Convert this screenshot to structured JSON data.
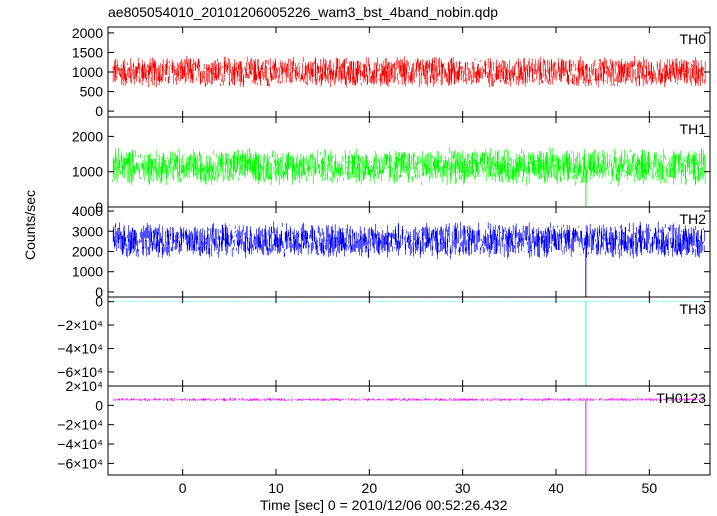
{
  "chart_data": {
    "type": "line",
    "title": "ae805054010_20101206005226_wam3_bst_4band_nobin.qdp",
    "xlabel": "Time [sec] 0 = 2010/12/06 00:52:26.432",
    "ylabel": "Counts/sec",
    "xlim": [
      -8,
      56.5
    ],
    "x_ticks": [
      0,
      10,
      20,
      30,
      40,
      50
    ],
    "x_tick_labels": [
      "0",
      "10",
      "20",
      "30",
      "40",
      "50"
    ],
    "grid": false,
    "panels": [
      {
        "name": "TH0",
        "color": "#ff0000",
        "ylim": [
          -150,
          2150
        ],
        "y_ticks": [
          0,
          500,
          1000,
          1500,
          2000
        ],
        "y_tick_labels": [
          "0",
          "500",
          "1000",
          "1500",
          "2000"
        ],
        "x_range": [
          -7.5,
          56
        ],
        "mean": 1000,
        "noise_amplitude": 430,
        "spike": null
      },
      {
        "name": "TH1",
        "color": "#00ff00",
        "ylim": [
          0,
          2550
        ],
        "y_ticks": [
          0,
          1000,
          2000
        ],
        "y_tick_labels": [
          "0",
          "1000",
          "2000"
        ],
        "x_range": [
          -7.5,
          56
        ],
        "mean": 1150,
        "noise_amplitude": 560,
        "spike": {
          "x": 43.2,
          "y": 0
        }
      },
      {
        "name": "TH2",
        "color": "#0000ff",
        "ylim": [
          -250,
          4200
        ],
        "y_ticks": [
          0,
          1000,
          2000,
          3000,
          4000
        ],
        "y_tick_labels": [
          "0",
          "1000",
          "2000",
          "3000",
          "4000"
        ],
        "x_range": [
          -7.5,
          56
        ],
        "mean": 2550,
        "noise_amplitude": 950,
        "spike": {
          "x": 43.2,
          "y": -250
        }
      },
      {
        "name": "TH3",
        "color": "#00ffff",
        "ylim": [
          -72000,
          4000
        ],
        "y_ticks": [
          0,
          -20000,
          -40000,
          -60000
        ],
        "y_tick_labels": [
          "0",
          "−2×10⁴",
          "−4×10⁴",
          "−6×10⁴"
        ],
        "x_range": [
          -7.5,
          56
        ],
        "mean": 0,
        "noise_amplitude": 400,
        "spike": {
          "x": 43.2,
          "y": -72000
        }
      },
      {
        "name": "TH0123",
        "color": "#ff00ff",
        "ylim": [
          -72000,
          20000
        ],
        "y_ticks": [
          20000,
          0,
          -20000,
          -40000,
          -60000
        ],
        "y_tick_labels": [
          "2×10⁴",
          "0",
          "−2×10⁴",
          "−4×10⁴",
          "−6×10⁴"
        ],
        "x_range": [
          -7.5,
          56
        ],
        "mean": 6000,
        "noise_amplitude": 1800,
        "spike": {
          "x": 43.2,
          "y": -72000
        }
      }
    ]
  }
}
